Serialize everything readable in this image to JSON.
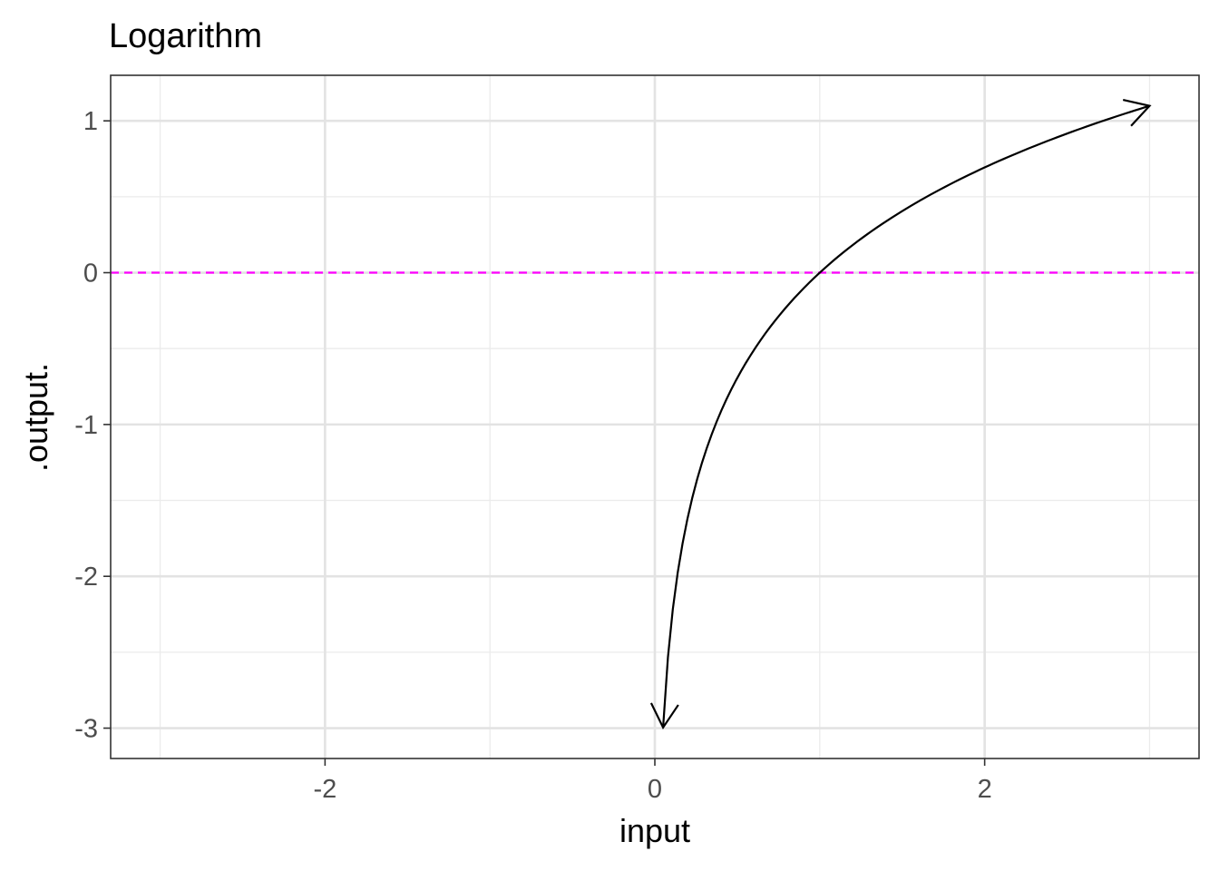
{
  "chart_data": {
    "type": "line",
    "title": "Logarithm",
    "xlabel": "input",
    "ylabel": ".output.",
    "xlim": [
      -3.3,
      3.3
    ],
    "ylim": [
      -3.2,
      1.3
    ],
    "x_major_ticks": [
      -2,
      0,
      2
    ],
    "x_minor_ticks": [
      -3,
      -1,
      1,
      3
    ],
    "y_major_ticks": [
      -3,
      -2,
      -1,
      0,
      1
    ],
    "y_minor_ticks": [
      -2.5,
      -1.5,
      -0.5,
      0.5
    ],
    "x_tick_labels": [
      "-2",
      "0",
      "2"
    ],
    "y_tick_labels": [
      "-3",
      "-2",
      "-1",
      "0",
      "1"
    ],
    "grid": true,
    "series": [
      {
        "function": "log(x)",
        "x_start": 0.05,
        "x_end": 3.0,
        "color": "#000000",
        "arrows": "both ends"
      }
    ],
    "reference_lines": [
      {
        "orientation": "horizontal",
        "y": 0,
        "style": "dashed",
        "color": "#ff00ff"
      }
    ]
  }
}
